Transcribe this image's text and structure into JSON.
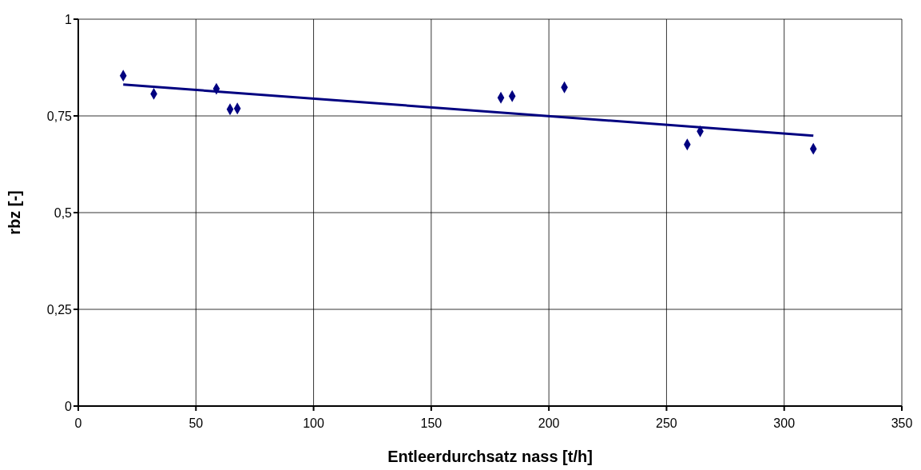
{
  "chart_data": {
    "type": "scatter",
    "xlabel": "Entleerdurchsatz nass [t/h]",
    "ylabel": "rbz [-]",
    "xlim": [
      0,
      350
    ],
    "xticks": [
      0,
      50,
      100,
      150,
      200,
      250,
      300,
      350
    ],
    "ylim": [
      0,
      1
    ],
    "yticks": [
      0,
      {
        "value": 0.25,
        "label": "0,25"
      },
      {
        "value": 0.5,
        "label": "0,5"
      },
      {
        "value": 0.75,
        "label": "0,75"
      },
      1
    ],
    "grid": true,
    "series": [
      {
        "color": "#000080",
        "marker": "diamond",
        "x": [
          19.1,
          32.1,
          58.7,
          64.5,
          67.6,
          179.6,
          184.4,
          206.6,
          258.8,
          264.3,
          312.4
        ],
        "values": [
          0.854,
          0.807,
          0.82,
          0.767,
          0.769,
          0.797,
          0.801,
          0.824,
          0.676,
          0.71,
          0.665
        ]
      },
      {
        "type": "line",
        "color": "#000080",
        "line_style": "solid",
        "x": [
          19.1,
          312.4
        ],
        "values": [
          0.831,
          0.699
        ]
      }
    ]
  }
}
